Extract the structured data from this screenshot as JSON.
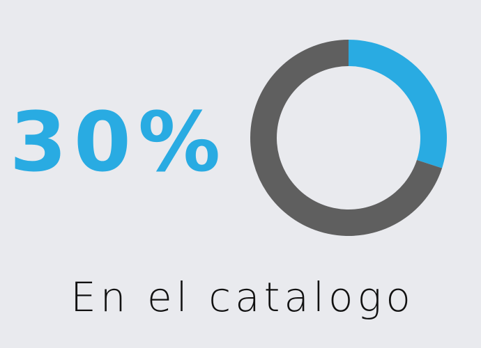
{
  "chart_data": {
    "type": "donut",
    "title": "En el catalogo",
    "values": [
      30,
      70
    ],
    "value_labels": [
      "30%",
      null
    ],
    "colors": [
      "#29abe2",
      "#5f5f5f"
    ]
  }
}
